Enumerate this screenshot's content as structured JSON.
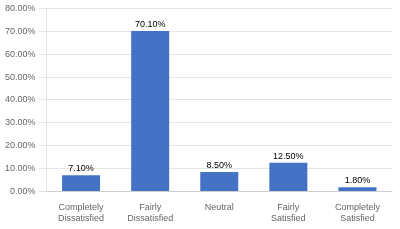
{
  "chart_data": {
    "type": "bar",
    "categories": [
      "Completely\nDissatisfied",
      "Fairly Dissatisfied",
      "Neutral",
      "Fairly Satisfied",
      "Completely Satisfied"
    ],
    "values": [
      7.1,
      70.1,
      8.5,
      12.5,
      1.8
    ],
    "value_labels": [
      "7.10%",
      "70.10%",
      "8.50%",
      "12.50%",
      "1.80%"
    ],
    "data_labels": true,
    "color": "#4472C4",
    "ylim": [
      0,
      80
    ],
    "yticks": [
      {
        "value": 0,
        "label": "0.00%"
      },
      {
        "value": 10,
        "label": "10.00%"
      },
      {
        "value": 20,
        "label": "20.00%"
      },
      {
        "value": 30,
        "label": "30.00%"
      },
      {
        "value": 40,
        "label": "40.00%"
      },
      {
        "value": 50,
        "label": "50.00%"
      },
      {
        "value": 60,
        "label": "60.00%"
      },
      {
        "value": 70,
        "label": "70.00%"
      },
      {
        "value": 80,
        "label": "80.00%"
      }
    ],
    "grid": true
  }
}
